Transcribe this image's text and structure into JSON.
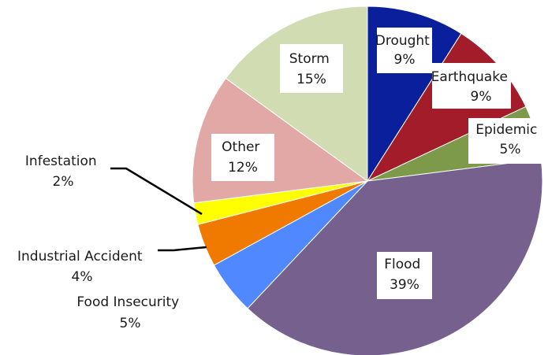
{
  "chart_data": {
    "type": "pie",
    "slices": [
      {
        "label": "Drought",
        "pct_text": "9%",
        "value": 9,
        "color": "#0a1f9c"
      },
      {
        "label": "Earthquake",
        "pct_text": "9%",
        "value": 9,
        "color": "#a31c2a"
      },
      {
        "label": "Epidemic",
        "pct_text": "5%",
        "value": 5,
        "color": "#7c9a4a"
      },
      {
        "label": "Flood",
        "pct_text": "39%",
        "value": 39,
        "color": "#75608e"
      },
      {
        "label": "Food Insecurity",
        "pct_text": "5%",
        "value": 5,
        "color": "#5088ff"
      },
      {
        "label": "Industrial Accident",
        "pct_text": "4%",
        "value": 4,
        "color": "#f07a00"
      },
      {
        "label": "Infestation",
        "pct_text": "2%",
        "value": 2,
        "color": "#ffff00"
      },
      {
        "label": "Other",
        "pct_text": "12%",
        "value": 12,
        "color": "#e2a8a6"
      },
      {
        "label": "Storm",
        "pct_text": "15%",
        "value": 15,
        "color": "#d2dcb2"
      }
    ]
  }
}
